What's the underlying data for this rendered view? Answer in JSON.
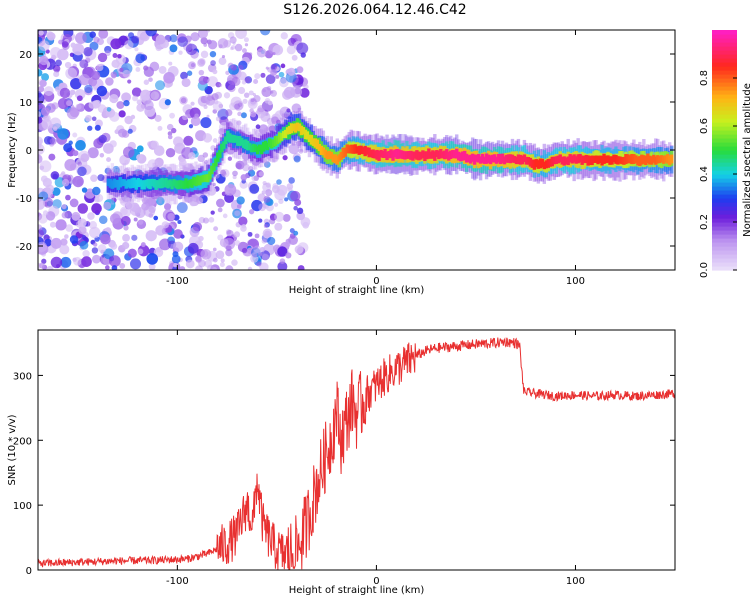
{
  "title": "S126.2026.064.12.46.C42",
  "chart_data": [
    {
      "type": "heatmap",
      "title": "S126.2026.064.12.46.C42",
      "xlabel": "Height of straight line (km)",
      "ylabel": "Frequency (Hz)",
      "xlim": [
        -170,
        150
      ],
      "ylim": [
        -25,
        25
      ],
      "xticks": [
        -100,
        0,
        100
      ],
      "yticks": [
        -20,
        -10,
        0,
        10,
        20
      ],
      "colorbar": {
        "label": "Normalized spectral amplitude",
        "range": [
          0,
          1
        ],
        "ticks": [
          0.0,
          0.2,
          0.4,
          0.6,
          0.8
        ],
        "tick_labels": [
          "0.0",
          "0.2",
          "0.4",
          "0.6",
          "0.8"
        ]
      },
      "ridge": {
        "x": [
          -135,
          -120,
          -105,
          -95,
          -85,
          -75,
          -65,
          -60,
          -55,
          -50,
          -45,
          -40,
          -35,
          -30,
          -25,
          -20,
          -15,
          -10,
          0,
          10,
          20,
          30,
          40,
          50,
          60,
          70,
          75,
          80,
          85,
          90,
          100,
          110,
          120,
          130,
          140,
          148
        ],
        "y": [
          -7,
          -7,
          -7,
          -7,
          -6,
          3,
          1,
          0,
          1,
          2,
          4,
          5,
          3,
          1,
          -1,
          -2,
          0,
          0,
          -1,
          -1,
          -1,
          -1,
          -1,
          -2,
          -2,
          -2,
          -2,
          -3,
          -3,
          -2,
          -2,
          -2,
          -2,
          -2,
          -2,
          -2
        ],
        "amplitude": [
          0.35,
          0.4,
          0.45,
          0.5,
          0.55,
          0.45,
          0.45,
          0.5,
          0.5,
          0.55,
          0.65,
          0.7,
          0.65,
          0.7,
          0.75,
          0.75,
          0.8,
          0.85,
          0.9,
          0.95,
          0.9,
          0.9,
          0.95,
          0.95,
          0.95,
          0.9,
          0.9,
          0.85,
          0.85,
          0.9,
          0.9,
          0.85,
          0.85,
          0.8,
          0.8,
          0.75
        ]
      }
    },
    {
      "type": "line",
      "xlabel": "Height of straight line (km)",
      "ylabel": "SNR (10 * v/v)",
      "xlim": [
        -170,
        150
      ],
      "ylim": [
        0,
        370
      ],
      "xticks": [
        -100,
        0,
        100
      ],
      "yticks": [
        0,
        100,
        200,
        300
      ],
      "series": [
        {
          "name": "SNR",
          "color": "#e83030",
          "x": [
            -170,
            -150,
            -130,
            -110,
            -95,
            -85,
            -75,
            -70,
            -65,
            -62,
            -60,
            -57,
            -54,
            -50,
            -45,
            -40,
            -35,
            -30,
            -25,
            -22,
            -20,
            -18,
            -15,
            -12,
            -10,
            -5,
            0,
            5,
            10,
            15,
            20,
            25,
            30,
            40,
            50,
            60,
            65,
            70,
            72,
            73,
            74,
            80,
            90,
            100,
            110,
            120,
            130,
            140,
            150
          ],
          "y": [
            10,
            12,
            14,
            15,
            17,
            25,
            40,
            55,
            100,
            70,
            140,
            70,
            50,
            30,
            22,
            30,
            70,
            130,
            180,
            210,
            250,
            200,
            230,
            260,
            240,
            270,
            285,
            300,
            310,
            320,
            330,
            338,
            342,
            345,
            348,
            350,
            352,
            350,
            345,
            310,
            275,
            272,
            268,
            270,
            268,
            270,
            268,
            270,
            272
          ]
        }
      ]
    }
  ],
  "colors": {
    "line": "#e83030",
    "heat_low": "#c8a8f0",
    "heat_mid": "#33dd33",
    "heat_high": "#ff2222"
  }
}
